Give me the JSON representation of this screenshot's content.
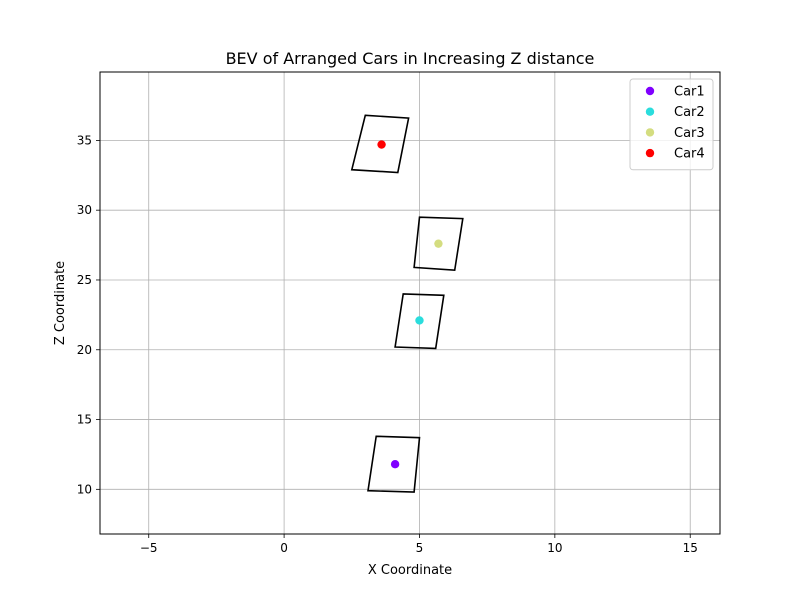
{
  "chart_data": {
    "type": "scatter",
    "title": "BEV of Arranged Cars in Increasing Z distance",
    "xlabel": "X Coordinate",
    "ylabel": "Z Coordinate",
    "xlim": [
      -6.8,
      16.1
    ],
    "ylim": [
      6.8,
      39.9
    ],
    "xticks": [
      -5,
      0,
      5,
      10,
      15
    ],
    "yticks": [
      10,
      15,
      20,
      25,
      30,
      35
    ],
    "grid": true,
    "legend_position": "top-right",
    "series": [
      {
        "name": "Car1",
        "color": "#8000ff",
        "x": [
          4.1
        ],
        "y": [
          11.8
        ],
        "box": [
          [
            3.4,
            13.8
          ],
          [
            5.0,
            13.7
          ],
          [
            4.8,
            9.8
          ],
          [
            3.1,
            9.9
          ]
        ]
      },
      {
        "name": "Car2",
        "color": "#2adddd",
        "x": [
          5.0
        ],
        "y": [
          22.1
        ],
        "box": [
          [
            4.4,
            24.0
          ],
          [
            5.9,
            23.9
          ],
          [
            5.6,
            20.1
          ],
          [
            4.1,
            20.2
          ]
        ]
      },
      {
        "name": "Car3",
        "color": "#d4dd80",
        "x": [
          5.7
        ],
        "y": [
          27.6
        ],
        "box": [
          [
            5.0,
            29.5
          ],
          [
            6.6,
            29.4
          ],
          [
            6.3,
            25.7
          ],
          [
            4.8,
            25.9
          ]
        ]
      },
      {
        "name": "Car4",
        "color": "#ff0000",
        "x": [
          3.6
        ],
        "y": [
          34.7
        ],
        "box": [
          [
            3.0,
            36.8
          ],
          [
            4.6,
            36.6
          ],
          [
            4.2,
            32.7
          ],
          [
            2.5,
            32.9
          ]
        ]
      }
    ]
  }
}
